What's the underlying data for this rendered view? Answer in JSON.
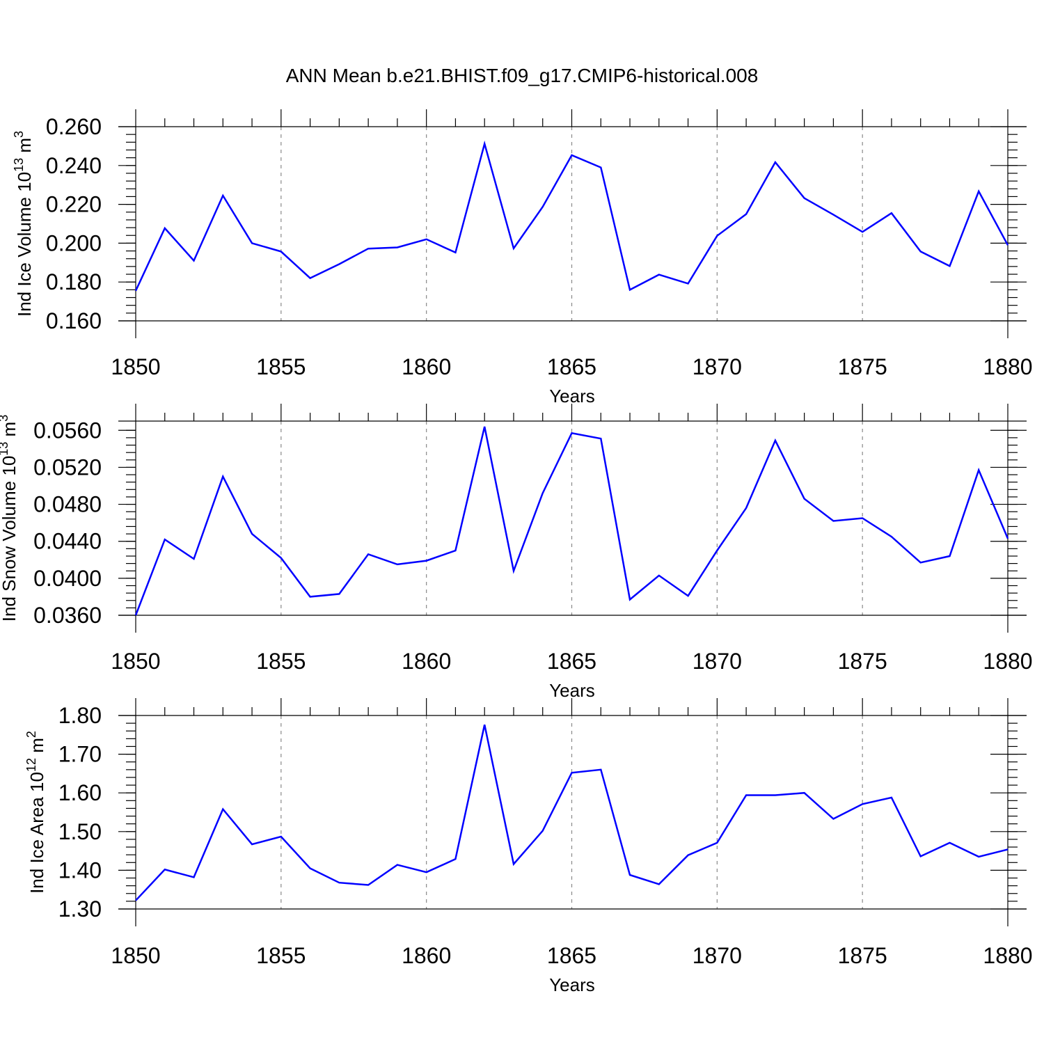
{
  "figure_title": "ANN Mean b.e21.BHIST.f09_g17.CMIP6-historical.008",
  "colors": {
    "line": "#0000ff",
    "grid": "#888888",
    "axis": "#000000"
  },
  "chart_data": [
    {
      "type": "line",
      "id": "ice-volume",
      "ylabel": {
        "main": "Ind Ice Volume 10",
        "exp1": "13",
        "mid": " m",
        "exp2": "3"
      },
      "xlabel": "Years",
      "xlim": [
        1850,
        1880
      ],
      "ylim": [
        0.16,
        0.26
      ],
      "xticks": [
        1850,
        1855,
        1860,
        1865,
        1870,
        1875,
        1880
      ],
      "yticks": [
        0.16,
        0.18,
        0.2,
        0.22,
        0.24,
        0.26
      ],
      "ytick_labels": [
        "0.160",
        "0.180",
        "0.200",
        "0.220",
        "0.240",
        "0.260"
      ],
      "y_minor_step": 0.004,
      "x_minor_step": 1,
      "grid": "vertical dashed at major x ticks",
      "x": [
        1850,
        1851,
        1852,
        1853,
        1854,
        1855,
        1856,
        1857,
        1858,
        1859,
        1860,
        1861,
        1862,
        1863,
        1864,
        1865,
        1866,
        1867,
        1868,
        1869,
        1870,
        1871,
        1872,
        1873,
        1874,
        1875,
        1876,
        1877,
        1878,
        1879,
        1880
      ],
      "series": [
        {
          "name": "Ind Ice Volume",
          "values": [
            0.1755,
            0.2077,
            0.191,
            0.2245,
            0.2,
            0.1957,
            0.182,
            0.1892,
            0.1972,
            0.1978,
            0.202,
            0.1952,
            0.2512,
            0.1973,
            0.2187,
            0.2453,
            0.239,
            0.176,
            0.1838,
            0.1792,
            0.2038,
            0.215,
            0.2417,
            0.2232,
            0.2147,
            0.2058,
            0.2155,
            0.1957,
            0.1882,
            0.2267,
            0.199
          ]
        }
      ]
    },
    {
      "type": "line",
      "id": "snow-volume",
      "ylabel": {
        "main": "Ind Snow Volume 10",
        "exp1": "13",
        "mid": " m",
        "exp2": "3"
      },
      "xlabel": "Years",
      "xlim": [
        1850,
        1880
      ],
      "ylim": [
        0.036,
        0.057
      ],
      "xticks": [
        1850,
        1855,
        1860,
        1865,
        1870,
        1875,
        1880
      ],
      "yticks": [
        0.036,
        0.04,
        0.044,
        0.048,
        0.052,
        0.056
      ],
      "ytick_labels": [
        "0.0360",
        "0.0400",
        "0.0440",
        "0.0480",
        "0.0520",
        "0.0560"
      ],
      "y_minor_step": 0.0008,
      "x_minor_step": 1,
      "grid": "vertical dashed at major x ticks",
      "x": [
        1850,
        1851,
        1852,
        1853,
        1854,
        1855,
        1856,
        1857,
        1858,
        1859,
        1860,
        1861,
        1862,
        1863,
        1864,
        1865,
        1866,
        1867,
        1868,
        1869,
        1870,
        1871,
        1872,
        1873,
        1874,
        1875,
        1876,
        1877,
        1878,
        1879,
        1880
      ],
      "series": [
        {
          "name": "Ind Snow Volume",
          "values": [
            0.036,
            0.0442,
            0.0421,
            0.051,
            0.0448,
            0.0422,
            0.038,
            0.0383,
            0.0426,
            0.0415,
            0.0419,
            0.043,
            0.0564,
            0.0408,
            0.0492,
            0.0557,
            0.0551,
            0.0377,
            0.0403,
            0.0381,
            0.043,
            0.0476,
            0.0549,
            0.0486,
            0.0462,
            0.0465,
            0.0445,
            0.0417,
            0.0424,
            0.0517,
            0.0443
          ]
        }
      ]
    },
    {
      "type": "line",
      "id": "ice-area",
      "ylabel": {
        "main": "Ind Ice Area 10",
        "exp1": "12",
        "mid": " m",
        "exp2": "2"
      },
      "xlabel": "Years",
      "xlim": [
        1850,
        1880
      ],
      "ylim": [
        1.3,
        1.8
      ],
      "xticks": [
        1850,
        1855,
        1860,
        1865,
        1870,
        1875,
        1880
      ],
      "yticks": [
        1.3,
        1.4,
        1.5,
        1.6,
        1.7,
        1.8
      ],
      "ytick_labels": [
        "1.30",
        "1.40",
        "1.50",
        "1.60",
        "1.70",
        "1.80"
      ],
      "y_minor_step": 0.02,
      "x_minor_step": 1,
      "grid": "vertical dashed at major x ticks",
      "x": [
        1850,
        1851,
        1852,
        1853,
        1854,
        1855,
        1856,
        1857,
        1858,
        1859,
        1860,
        1861,
        1862,
        1863,
        1864,
        1865,
        1866,
        1867,
        1868,
        1869,
        1870,
        1871,
        1872,
        1873,
        1874,
        1875,
        1876,
        1877,
        1878,
        1879,
        1880
      ],
      "series": [
        {
          "name": "Ind Ice Area",
          "values": [
            1.322,
            1.402,
            1.382,
            1.558,
            1.467,
            1.487,
            1.405,
            1.368,
            1.362,
            1.414,
            1.395,
            1.429,
            1.776,
            1.416,
            1.502,
            1.652,
            1.66,
            1.388,
            1.364,
            1.439,
            1.471,
            1.594,
            1.594,
            1.6,
            1.533,
            1.571,
            1.588,
            1.436,
            1.471,
            1.435,
            1.454
          ]
        }
      ]
    }
  ]
}
